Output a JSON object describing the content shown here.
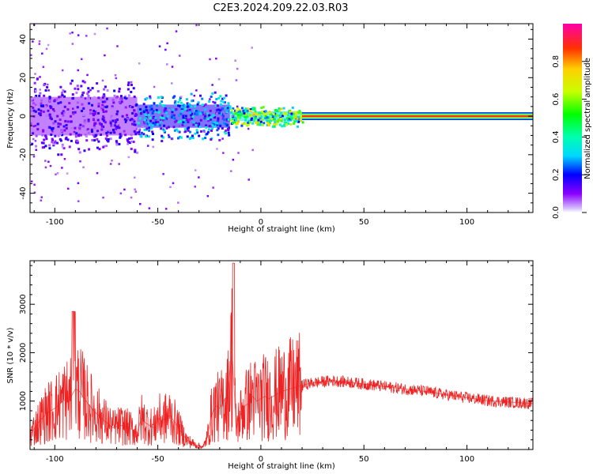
{
  "title": "C2E3.2024.209.22.03.R03",
  "colors": {
    "snr_line": "#ee2222",
    "background": "#ffffff",
    "axis": "#000000"
  },
  "chart_data": [
    {
      "type": "heatmap",
      "xlabel": "Height of straight line (km)",
      "ylabel": "Frequency (Hz)",
      "xlim": [
        -112,
        132
      ],
      "ylim": [
        -50,
        48
      ],
      "x_ticks": [
        -100,
        -50,
        0,
        50,
        100
      ],
      "x_tick_labels": [
        "-100",
        "-50",
        "0",
        "50",
        "100"
      ],
      "y_ticks": [
        -40,
        -20,
        0,
        20,
        40
      ],
      "y_tick_labels": [
        "-40",
        "-20",
        "0",
        "20",
        "40"
      ],
      "colorbar": {
        "label": "Normalized spectral amplitude",
        "range": [
          0,
          1
        ],
        "ticks": [
          0,
          0.2,
          0.4,
          0.6,
          0.8
        ],
        "tick_labels": [
          "0.0",
          "0.2",
          "0.4",
          "0.6",
          "0.8"
        ],
        "colormap": "rainbow"
      },
      "bands": [
        {
          "x_start": -112,
          "x_end": -60,
          "center_hz": 0,
          "halfwidth_hz": 10,
          "amplitude": 0.15
        },
        {
          "x_start": -60,
          "x_end": -15,
          "center_hz": 0,
          "halfwidth_hz": 6,
          "amplitude": 0.3
        },
        {
          "x_start": -15,
          "x_end": 20,
          "center_hz": 0,
          "halfwidth_hz": 2.5,
          "amplitude": 0.6
        },
        {
          "x_start": 20,
          "x_end": 132,
          "center_hz": 0,
          "halfwidth_hz": 2,
          "amplitude": 1.0
        }
      ]
    },
    {
      "type": "line",
      "xlabel": "Height of straight line (km)",
      "ylabel": "SNR (10 * v/v)",
      "xlim": [
        -112,
        132
      ],
      "ylim": [
        0,
        3900
      ],
      "x_ticks": [
        -100,
        -50,
        0,
        50,
        100
      ],
      "x_tick_labels": [
        "-100",
        "-50",
        "0",
        "50",
        "100"
      ],
      "y_ticks": [
        1000,
        2000,
        3000
      ],
      "y_tick_labels": [
        "1000",
        "2000",
        "3000"
      ],
      "series": [
        {
          "x": [
            -112,
            -108,
            -104,
            -100,
            -96,
            -92,
            -90,
            -88,
            -84,
            -80,
            -76,
            -72,
            -68,
            -64,
            -60,
            -58,
            -56,
            -52,
            -50,
            -48,
            -44,
            -40,
            -36,
            -32,
            -28,
            -26,
            -24,
            -22,
            -20,
            -18,
            -16,
            -14,
            -13,
            -12,
            -10,
            -8,
            -6,
            -4,
            -2,
            0,
            2,
            4,
            6,
            8,
            10,
            14,
            18,
            22,
            26,
            30,
            35,
            40,
            45,
            50,
            55,
            60,
            70,
            80,
            90,
            100,
            110,
            120,
            132
          ],
          "y": [
            300,
            550,
            750,
            850,
            1000,
            1100,
            1250,
            1200,
            950,
            750,
            600,
            450,
            500,
            450,
            350,
            650,
            550,
            450,
            650,
            600,
            700,
            450,
            200,
            100,
            50,
            250,
            700,
            900,
            850,
            1000,
            1150,
            2000,
            1300,
            450,
            700,
            900,
            950,
            1100,
            1000,
            1050,
            1100,
            1050,
            1100,
            1150,
            1200,
            1250,
            1300,
            1350,
            1380,
            1400,
            1420,
            1400,
            1380,
            1350,
            1330,
            1300,
            1250,
            1200,
            1130,
            1070,
            1010,
            980,
            950
          ]
        }
      ]
    }
  ]
}
